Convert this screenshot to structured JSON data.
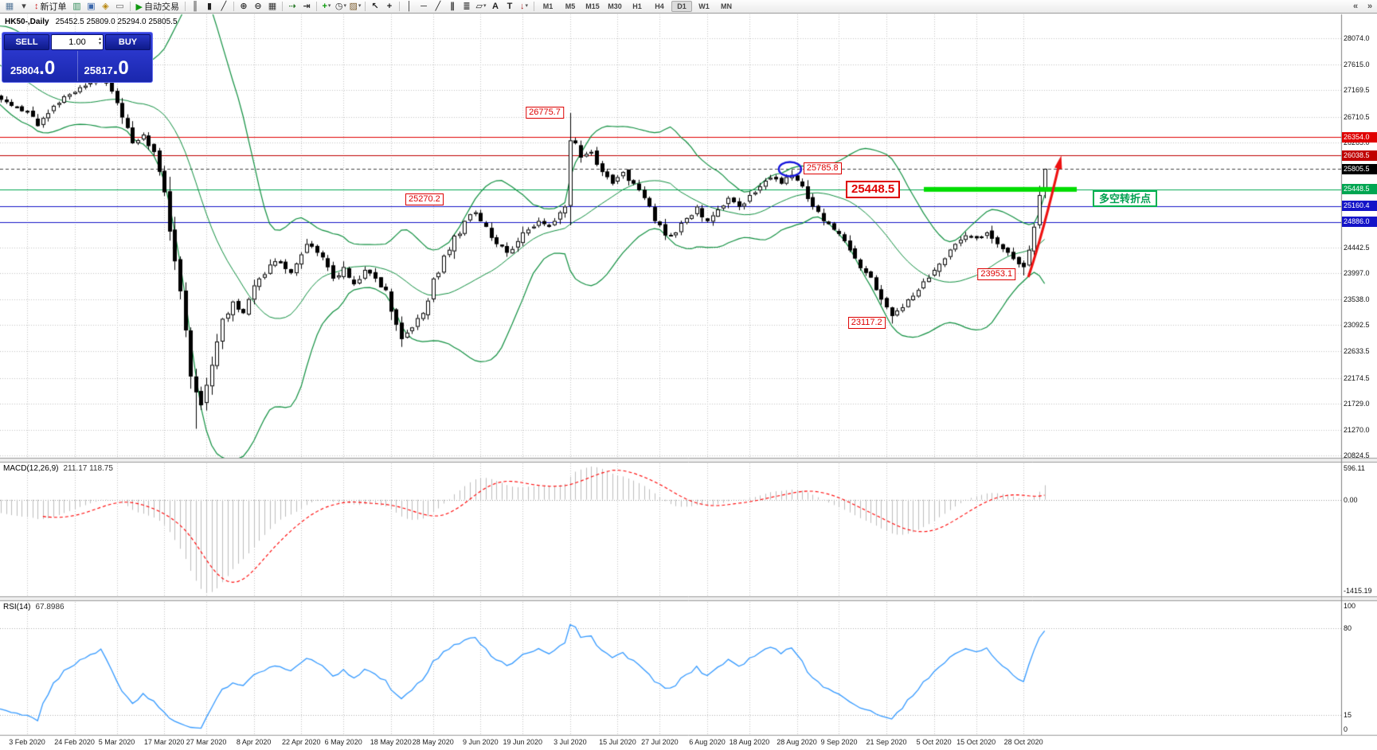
{
  "toolbar": {
    "timeframes": [
      "M1",
      "M5",
      "M15",
      "M30",
      "H1",
      "H4",
      "D1",
      "W1",
      "MN"
    ],
    "active_timeframe": "D1",
    "items": [
      {
        "type": "icon",
        "name": "new-chart-icon",
        "glyph": "▦",
        "color": "#557799"
      },
      {
        "type": "icon",
        "name": "new-chart-dropdown-icon",
        "glyph": "▾",
        "color": "#444444"
      },
      {
        "type": "button",
        "name": "new-order-button",
        "glyph": "↕",
        "glyph_color": "#cc2222",
        "label": "新订单"
      },
      {
        "type": "icon",
        "name": "market-watch-icon",
        "glyph": "▥",
        "color": "#2e8b57"
      },
      {
        "type": "icon",
        "name": "data-window-icon",
        "glyph": "▣",
        "color": "#3a66aa"
      },
      {
        "type": "icon",
        "name": "navigator-icon",
        "glyph": "◈",
        "color": "#b8860b"
      },
      {
        "type": "icon",
        "name": "terminal-icon",
        "glyph": "▭",
        "color": "#666666"
      },
      {
        "type": "sep"
      },
      {
        "type": "button",
        "name": "autotrading-button",
        "glyph": "▶",
        "glyph_color": "#119911",
        "label": "自动交易"
      },
      {
        "type": "sep"
      },
      {
        "type": "icon",
        "name": "bar-chart-icon",
        "glyph": "║",
        "color": "#222222"
      },
      {
        "type": "icon",
        "name": "candlestick-chart-icon",
        "glyph": "▮",
        "color": "#222222"
      },
      {
        "type": "icon",
        "name": "line-chart-icon",
        "glyph": "╱",
        "color": "#222222"
      },
      {
        "type": "sep"
      },
      {
        "type": "icon",
        "name": "zoom-in-icon",
        "glyph": "⊕",
        "color": "#333333"
      },
      {
        "type": "icon",
        "name": "zoom-out-icon",
        "glyph": "⊖",
        "color": "#333333"
      },
      {
        "type": "icon",
        "name": "tile-windows-icon",
        "glyph": "▦",
        "color": "#333333"
      },
      {
        "type": "sep"
      },
      {
        "type": "icon",
        "name": "auto-scroll-icon",
        "glyph": "⇢",
        "color": "#2a7a2a"
      },
      {
        "type": "icon",
        "name": "chart-shift-icon",
        "glyph": "⇥",
        "color": "#333333"
      },
      {
        "type": "sep"
      },
      {
        "type": "icon",
        "name": "indicators-icon",
        "glyph": "+",
        "color": "#0a9a0a",
        "dropdown": true
      },
      {
        "type": "icon",
        "name": "periods-icon",
        "glyph": "◷",
        "color": "#333333",
        "dropdown": true
      },
      {
        "type": "icon",
        "name": "templates-icon",
        "glyph": "▨",
        "color": "#7a5a2a",
        "dropdown": true
      },
      {
        "type": "sep"
      },
      {
        "type": "icon",
        "name": "cursor-icon",
        "glyph": "↖",
        "color": "#222222"
      },
      {
        "type": "icon",
        "name": "crosshair-icon",
        "glyph": "+",
        "color": "#222222"
      },
      {
        "type": "sep"
      },
      {
        "type": "icon",
        "name": "vertical-line-icon",
        "glyph": "│",
        "color": "#222222"
      },
      {
        "type": "icon",
        "name": "horizontal-line-icon",
        "glyph": "─",
        "color": "#222222"
      },
      {
        "type": "icon",
        "name": "trendline-icon",
        "glyph": "╱",
        "color": "#222222"
      },
      {
        "type": "icon",
        "name": "equidistant-channel-icon",
        "glyph": "∥",
        "color": "#222222"
      },
      {
        "type": "icon",
        "name": "fibonacci-icon",
        "glyph": "≣",
        "color": "#222222"
      },
      {
        "type": "icon",
        "name": "shapes-icon",
        "glyph": "▱",
        "color": "#222222",
        "dropdown": true
      },
      {
        "type": "icon",
        "name": "text-icon",
        "glyph": "A",
        "color": "#222222"
      },
      {
        "type": "icon",
        "name": "text-label-icon",
        "glyph": "T",
        "color": "#222222"
      },
      {
        "type": "icon",
        "name": "arrows-icon",
        "glyph": "↓",
        "color": "#aa2222",
        "dropdown": true
      },
      {
        "type": "sep"
      },
      {
        "type": "timeframes"
      },
      {
        "type": "spacer"
      },
      {
        "type": "icon",
        "name": "toolbar-prev-icon",
        "glyph": "«",
        "color": "#555555"
      },
      {
        "type": "icon",
        "name": "toolbar-next-icon",
        "glyph": "»",
        "color": "#555555"
      }
    ]
  },
  "trade_panel": {
    "sell_label": "SELL",
    "buy_label": "BUY",
    "volume": "1.00",
    "sell_price": {
      "base": "25804",
      "big": ".0"
    },
    "buy_price": {
      "base": "25817",
      "big": ".0"
    }
  },
  "chart_header": {
    "symbol_period": "HK50-,Daily",
    "ohlc_text": "25452.5 25809.0 25294.0 25805.5"
  },
  "chart_data": {
    "type": "candlestick",
    "symbol": "HK50-",
    "period": "Daily",
    "current_bar": {
      "open": 25452.5,
      "high": 25809.0,
      "low": 25294.0,
      "close": 25805.5
    },
    "y_axis_ticks": [
      28074.0,
      27615.0,
      27169.5,
      26710.5,
      26265.0,
      24442.5,
      23997.0,
      23538.0,
      23092.5,
      22633.5,
      22174.5,
      21729.0,
      21270.0,
      20824.5
    ],
    "price_levels": [
      {
        "label": "26354.0",
        "price": 26354.0,
        "color": "#e00000",
        "style": "solid"
      },
      {
        "label": "26038.5",
        "price": 26038.5,
        "color": "#c00000",
        "style": "solid"
      },
      {
        "label": "25805.5",
        "price": 25805.5,
        "color": "#444444",
        "style": "dashed",
        "label_bg": "#000000"
      },
      {
        "label": "25448.5",
        "price": 25448.5,
        "color": "#00a651",
        "style": "solid"
      },
      {
        "label": "25160.4",
        "price": 25160.4,
        "color": "#1414c8",
        "style": "solid"
      },
      {
        "label": "24886.0",
        "price": 24886.0,
        "color": "#1414c8",
        "style": "solid"
      }
    ],
    "support_zone": {
      "price": 25448.5,
      "color": "#00dd00",
      "label": "多空转折点",
      "label_color": "#00a050"
    },
    "annotations": [
      {
        "text": "26775.7",
        "bar": 103,
        "price": 26775.7,
        "kind": "high"
      },
      {
        "text": "25785.8",
        "bar": 145,
        "price": 25785.8,
        "kind": "high",
        "circled": true
      },
      {
        "text": "25448.5",
        "price": 25448.5,
        "kind": "level",
        "big": true
      },
      {
        "text": "25270.2",
        "price": 25270.2,
        "kind": "level"
      },
      {
        "text": "23953.1",
        "bar": 189,
        "price": 23953.1,
        "kind": "low"
      },
      {
        "text": "23117.2",
        "bar": 164,
        "price": 23117.2,
        "kind": "low"
      }
    ],
    "trend_arrow": {
      "color": "#ee1111"
    },
    "circle_color": "#1515dd",
    "x_labels": [
      {
        "text": "3 Feb 2020",
        "bar": 0
      },
      {
        "text": "24 Feb 2020",
        "bar": 9
      },
      {
        "text": "5 Mar 2020",
        "bar": 17
      },
      {
        "text": "17 Mar 2020",
        "bar": 26
      },
      {
        "text": "27 Mar 2020",
        "bar": 34
      },
      {
        "text": "8 Apr 2020",
        "bar": 43
      },
      {
        "text": "22 Apr 2020",
        "bar": 52
      },
      {
        "text": "6 May 2020",
        "bar": 60
      },
      {
        "text": "18 May 2020",
        "bar": 69
      },
      {
        "text": "28 May 2020",
        "bar": 77
      },
      {
        "text": "9 Jun 2020",
        "bar": 86
      },
      {
        "text": "19 Jun 2020",
        "bar": 94
      },
      {
        "text": "3 Jul 2020",
        "bar": 103
      },
      {
        "text": "15 Jul 2020",
        "bar": 112
      },
      {
        "text": "27 Jul 2020",
        "bar": 120
      },
      {
        "text": "6 Aug 2020",
        "bar": 129
      },
      {
        "text": "18 Aug 2020",
        "bar": 137
      },
      {
        "text": "28 Aug 2020",
        "bar": 146
      },
      {
        "text": "9 Sep 2020",
        "bar": 154
      },
      {
        "text": "21 Sep 2020",
        "bar": 163
      },
      {
        "text": "5 Oct 2020",
        "bar": 172
      },
      {
        "text": "15 Oct 2020",
        "bar": 180
      },
      {
        "text": "28 Oct 2020",
        "bar": 189
      }
    ],
    "bars_total": 194,
    "close_anchors": [
      [
        -30,
        27700
      ],
      [
        -20,
        28050
      ],
      [
        -10,
        27300
      ],
      [
        -3,
        26900
      ],
      [
        0,
        26800
      ],
      [
        2,
        26550
      ],
      [
        5,
        26900
      ],
      [
        8,
        27100
      ],
      [
        11,
        27250
      ],
      [
        14,
        27400
      ],
      [
        16,
        27150
      ],
      [
        18,
        26700
      ],
      [
        20,
        26250
      ],
      [
        22,
        26400
      ],
      [
        24,
        26100
      ],
      [
        26,
        25400
      ],
      [
        28,
        24200
      ],
      [
        30,
        23000
      ],
      [
        31,
        22200
      ],
      [
        33,
        21700
      ],
      [
        35,
        22400
      ],
      [
        37,
        23200
      ],
      [
        39,
        23500
      ],
      [
        41,
        23300
      ],
      [
        44,
        23900
      ],
      [
        47,
        24200
      ],
      [
        50,
        24000
      ],
      [
        53,
        24500
      ],
      [
        55,
        24350
      ],
      [
        58,
        23900
      ],
      [
        60,
        24100
      ],
      [
        62,
        23800
      ],
      [
        64,
        24050
      ],
      [
        66,
        23900
      ],
      [
        68,
        23700
      ],
      [
        70,
        23100
      ],
      [
        71,
        22850
      ],
      [
        73,
        23050
      ],
      [
        75,
        23300
      ],
      [
        77,
        23900
      ],
      [
        80,
        24400
      ],
      [
        83,
        24900
      ],
      [
        85,
        25050
      ],
      [
        87,
        24800
      ],
      [
        89,
        24500
      ],
      [
        91,
        24350
      ],
      [
        93,
        24550
      ],
      [
        95,
        24750
      ],
      [
        97,
        24900
      ],
      [
        99,
        24800
      ],
      [
        101,
        25050
      ],
      [
        102,
        25150
      ],
      [
        103,
        26300
      ],
      [
        104,
        26250
      ],
      [
        105,
        26000
      ],
      [
        107,
        26100
      ],
      [
        109,
        25750
      ],
      [
        111,
        25550
      ],
      [
        113,
        25750
      ],
      [
        115,
        25550
      ],
      [
        117,
        25300
      ],
      [
        119,
        24900
      ],
      [
        121,
        24650
      ],
      [
        123,
        24700
      ],
      [
        125,
        24950
      ],
      [
        127,
        25150
      ],
      [
        129,
        24900
      ],
      [
        131,
        25100
      ],
      [
        133,
        25300
      ],
      [
        135,
        25150
      ],
      [
        137,
        25350
      ],
      [
        139,
        25500
      ],
      [
        141,
        25650
      ],
      [
        143,
        25550
      ],
      [
        145,
        25700
      ],
      [
        147,
        25500
      ],
      [
        149,
        25150
      ],
      [
        151,
        24900
      ],
      [
        153,
        24750
      ],
      [
        155,
        24550
      ],
      [
        157,
        24250
      ],
      [
        159,
        24000
      ],
      [
        161,
        23700
      ],
      [
        163,
        23400
      ],
      [
        164,
        23250
      ],
      [
        166,
        23400
      ],
      [
        168,
        23600
      ],
      [
        170,
        23850
      ],
      [
        172,
        24050
      ],
      [
        174,
        24250
      ],
      [
        176,
        24500
      ],
      [
        178,
        24650
      ],
      [
        180,
        24600
      ],
      [
        182,
        24700
      ],
      [
        184,
        24500
      ],
      [
        186,
        24350
      ],
      [
        188,
        24150
      ],
      [
        189,
        24100
      ],
      [
        190,
        24400
      ],
      [
        191,
        24800
      ],
      [
        192,
        25350
      ],
      [
        193,
        25805.5
      ]
    ],
    "wick_overrides": [
      {
        "bar": 32,
        "low": 21290
      },
      {
        "bar": 14,
        "high": 27560
      }
    ],
    "bollinger": {
      "period": 20,
      "deviation": 2,
      "color": "#0f8f3f"
    }
  },
  "indicators": {
    "macd": {
      "name": "MACD(12,26,9)",
      "values": "211.17 118.75",
      "axis_labels": [
        "596.11",
        "0.00",
        "-1415.19"
      ],
      "histogram_color": "#bdbdbd",
      "signal_color": "#ff0000"
    },
    "rsi": {
      "name": "RSI(14)",
      "value": "67.8986",
      "axis_labels": [
        "100",
        "80",
        "15",
        "0"
      ],
      "axis_values": [
        100,
        80,
        15,
        0
      ],
      "levels": [
        80,
        15
      ],
      "line_color": "#3399ff"
    }
  }
}
